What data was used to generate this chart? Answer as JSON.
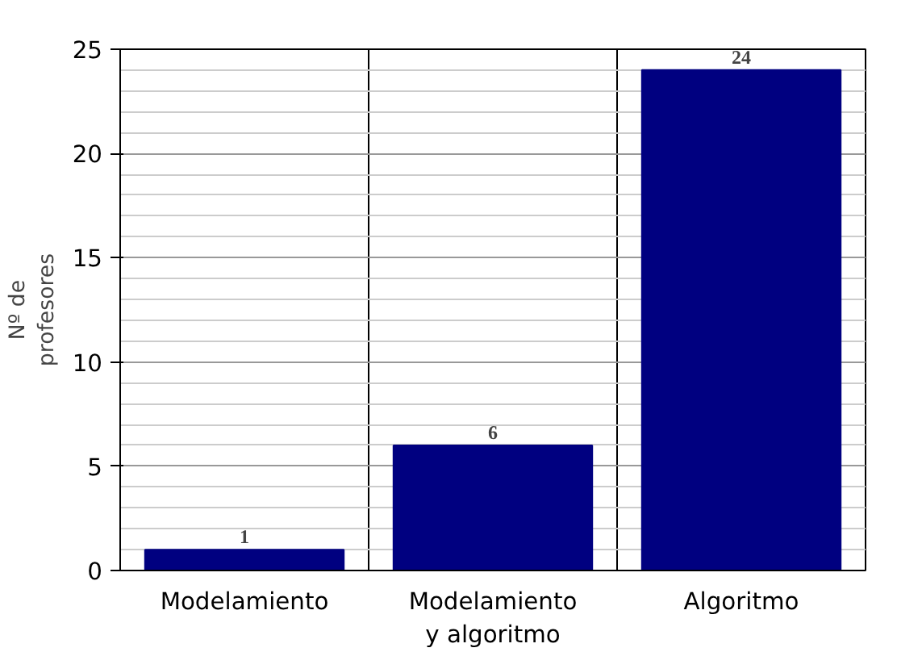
{
  "chart_data": {
    "type": "bar",
    "ylabel": "Nº de\nprofesores",
    "categories": [
      "Modelamiento",
      "Modelamiento\ny algoritmo",
      "Algoritmo"
    ],
    "values": [
      1,
      6,
      24
    ],
    "color": "#000080",
    "ylim": [
      0,
      25
    ],
    "yticks": [
      0,
      5,
      10,
      15,
      20,
      25
    ],
    "grid": true,
    "data_labels": true
  }
}
